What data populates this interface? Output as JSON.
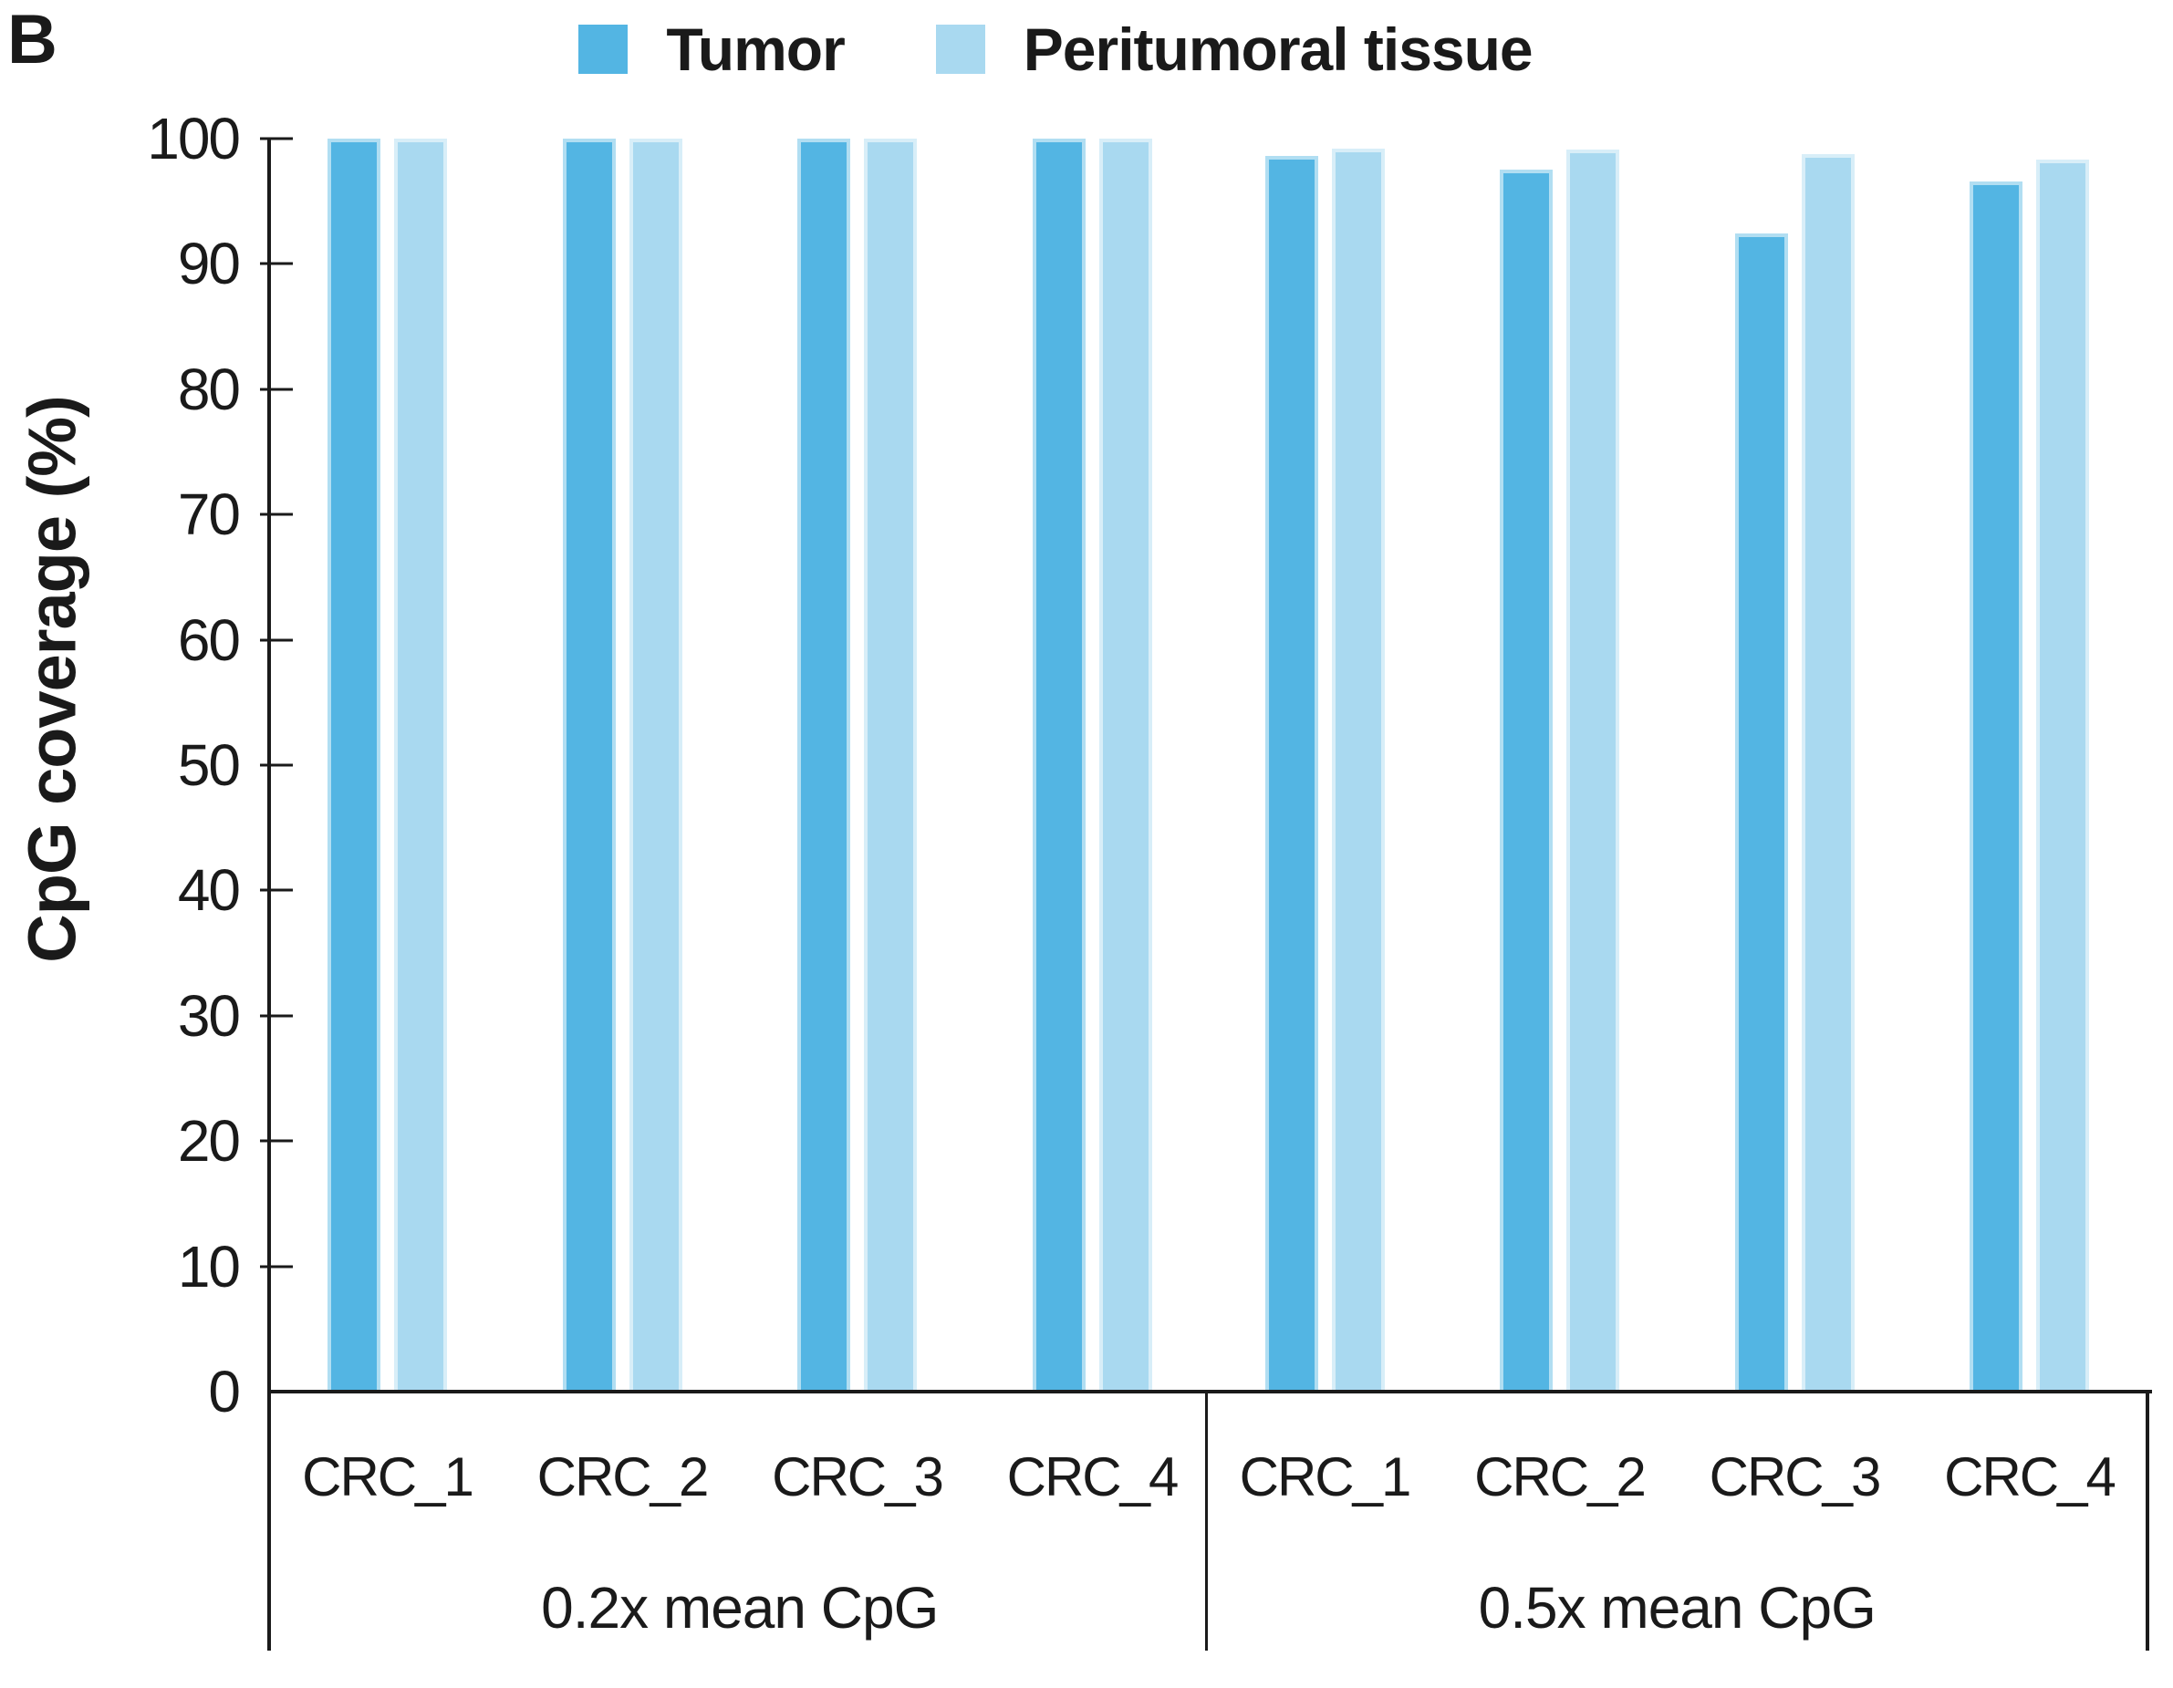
{
  "panel_label": "B",
  "legend": {
    "items": [
      {
        "label": "Tumor",
        "color": "#53B5E3"
      },
      {
        "label": "Peritumoral tissue",
        "color": "#A9D9F0"
      }
    ]
  },
  "chart_data": {
    "type": "bar",
    "title": "",
    "xlabel": "",
    "ylabel": "CpG coverage (%)",
    "ylim": [
      0,
      100
    ],
    "y_ticks": [
      100,
      90,
      80,
      70,
      60,
      50,
      40,
      30,
      20,
      10,
      0
    ],
    "grid": false,
    "legend_position": "top",
    "colors": {
      "Tumor": "#53B5E3",
      "Peritumoral tissue": "#A9D9F0"
    },
    "groups": [
      {
        "label": "0.2x mean CpG",
        "categories": [
          "CRC_1",
          "CRC_2",
          "CRC_3",
          "CRC_4"
        ],
        "series": [
          {
            "name": "Tumor",
            "values": [
              100,
              100,
              100,
              100
            ]
          },
          {
            "name": "Peritumoral tissue",
            "values": [
              100,
              100,
              100,
              100
            ]
          }
        ]
      },
      {
        "label": "0.5x mean CpG",
        "categories": [
          "CRC_1",
          "CRC_2",
          "CRC_3",
          "CRC_4"
        ],
        "series": [
          {
            "name": "Tumor",
            "values": [
              98.6,
              97.5,
              92.4,
              96.6
            ]
          },
          {
            "name": "Peritumoral tissue",
            "values": [
              99.2,
              99.1,
              98.8,
              98.3
            ]
          }
        ]
      }
    ]
  }
}
